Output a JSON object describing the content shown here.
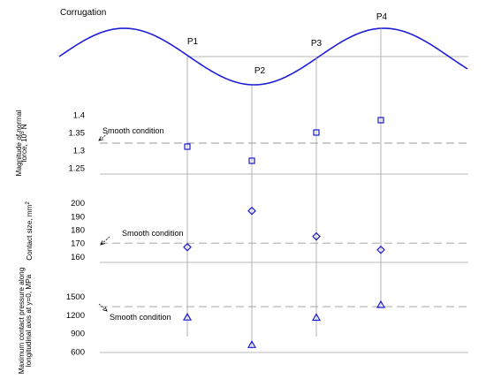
{
  "chart_data": {
    "type": "scatter",
    "title": "Corrugation",
    "corrugation_points": [
      "P1",
      "P2",
      "P3",
      "P4"
    ],
    "panels": [
      {
        "id": "force",
        "ylabel_line1": "Magnitude of normal",
        "ylabel_line2": "force, 10",
        "ylabel_sup": "5",
        "ylabel_line2_end": " N",
        "yticks": [
          "1.25",
          "1.3",
          "1.35",
          "1.4"
        ],
        "ytick_values": [
          1.25,
          1.3,
          1.35,
          1.4
        ],
        "ylim": [
          1.23,
          1.41
        ],
        "marker": "square",
        "values": [
          1.31,
          1.27,
          1.35,
          1.385
        ],
        "reference_value": 1.32,
        "reference_label": "Smooth condition"
      },
      {
        "id": "size",
        "ylabel_line1": "Contact size, mm",
        "ylabel_sup": "2",
        "yticks": [
          "160",
          "170",
          "180",
          "190",
          "200"
        ],
        "ytick_values": [
          160,
          170,
          180,
          190,
          200
        ],
        "ylim": [
          155,
          203
        ],
        "marker": "diamond",
        "values": [
          167,
          194,
          175,
          165
        ],
        "reference_value": 170,
        "reference_label": "Smooth condition"
      },
      {
        "id": "pressure",
        "ylabel_line1": "Maximum contact pressure along",
        "ylabel_line2": "longitudinal axis at y=0, MPa",
        "yticks": [
          "600",
          "900",
          "1200",
          "1500"
        ],
        "ytick_values": [
          600,
          900,
          1200,
          1500
        ],
        "ylim": [
          570,
          1640
        ],
        "marker": "triangle",
        "values": [
          1160,
          710,
          1155,
          1365
        ],
        "reference_value": 1335,
        "reference_label": "Smooth condition"
      }
    ],
    "colors": {
      "curve": "#1f1fd6",
      "marker": "#1a1ad0",
      "reference": "#9a9a9a",
      "axis": "#a0a0a0"
    },
    "grid": false
  }
}
